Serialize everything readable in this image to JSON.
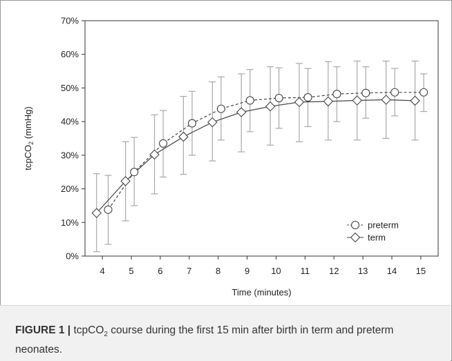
{
  "chart_data": {
    "type": "line",
    "xlabel": "Time (minutes)",
    "ylabel_prefix": "tcpCO",
    "ylabel_sub": "2",
    "ylabel_suffix": " (mmHg)",
    "x_ticks": [
      "4",
      "5",
      "6",
      "7",
      "8",
      "9",
      "10",
      "11",
      "12",
      "13",
      "14",
      "15"
    ],
    "xlim": [
      3.4,
      15.6
    ],
    "y_ticks": [
      "0%",
      "10%",
      "20%",
      "30%",
      "40%",
      "50%",
      "60%",
      "70%"
    ],
    "ylim": [
      0,
      70
    ],
    "grid": false,
    "legend_position": "bottom-right",
    "series": [
      {
        "name": "preterm",
        "marker": "circle",
        "line_style": "dashed",
        "points": [
          {
            "x": 4.2,
            "y": 13.8,
            "low": 3.5,
            "high": 24.0
          },
          {
            "x": 5.1,
            "y": 25.0,
            "low": 15.0,
            "high": 35.3
          },
          {
            "x": 6.1,
            "y": 33.5,
            "low": 23.5,
            "high": 43.3
          },
          {
            "x": 7.1,
            "y": 39.5,
            "low": 30.0,
            "high": 49.0
          },
          {
            "x": 8.1,
            "y": 43.8,
            "low": 34.5,
            "high": 53.3
          },
          {
            "x": 9.1,
            "y": 46.3,
            "low": 37.0,
            "high": 55.5
          },
          {
            "x": 10.1,
            "y": 47.0,
            "low": 38.0,
            "high": 56.0
          },
          {
            "x": 11.1,
            "y": 47.2,
            "low": 38.5,
            "high": 55.8
          },
          {
            "x": 12.1,
            "y": 48.2,
            "low": 40.0,
            "high": 56.3
          },
          {
            "x": 13.1,
            "y": 48.5,
            "low": 41.0,
            "high": 56.3
          },
          {
            "x": 14.1,
            "y": 48.7,
            "low": 41.7,
            "high": 55.8
          },
          {
            "x": 15.1,
            "y": 48.7,
            "low": 43.0,
            "high": 54.2
          }
        ]
      },
      {
        "name": "term",
        "marker": "diamond",
        "line_style": "solid",
        "points": [
          {
            "x": 3.8,
            "y": 12.8,
            "low": 1.3,
            "high": 24.5
          },
          {
            "x": 4.8,
            "y": 22.3,
            "low": 10.5,
            "high": 34.0
          },
          {
            "x": 5.8,
            "y": 30.2,
            "low": 18.5,
            "high": 42.0
          },
          {
            "x": 6.8,
            "y": 35.5,
            "low": 24.3,
            "high": 47.5
          },
          {
            "x": 7.8,
            "y": 39.8,
            "low": 28.3,
            "high": 51.8
          },
          {
            "x": 8.8,
            "y": 42.8,
            "low": 31.0,
            "high": 54.2
          },
          {
            "x": 9.8,
            "y": 44.5,
            "low": 33.0,
            "high": 56.3
          },
          {
            "x": 10.8,
            "y": 45.8,
            "low": 34.0,
            "high": 57.3
          },
          {
            "x": 11.8,
            "y": 46.0,
            "low": 34.5,
            "high": 57.8
          },
          {
            "x": 12.8,
            "y": 46.3,
            "low": 34.5,
            "high": 58.0
          },
          {
            "x": 13.8,
            "y": 46.5,
            "low": 35.0,
            "high": 58.0
          },
          {
            "x": 14.8,
            "y": 46.2,
            "low": 34.5,
            "high": 58.0
          }
        ]
      }
    ]
  },
  "caption": {
    "label": "FIGURE 1 |",
    "text_part1": " tcpCO",
    "text_sub": "2",
    "text_part2": " course during the first 15 min after birth in term and preterm neonates."
  },
  "colors": {
    "axis": "#333333",
    "line": "#444444",
    "error_bar": "#a8a8a8",
    "marker_fill": "#ffffff",
    "caption_bg": "#f1f1f1",
    "frame": "#9a9a9a"
  }
}
